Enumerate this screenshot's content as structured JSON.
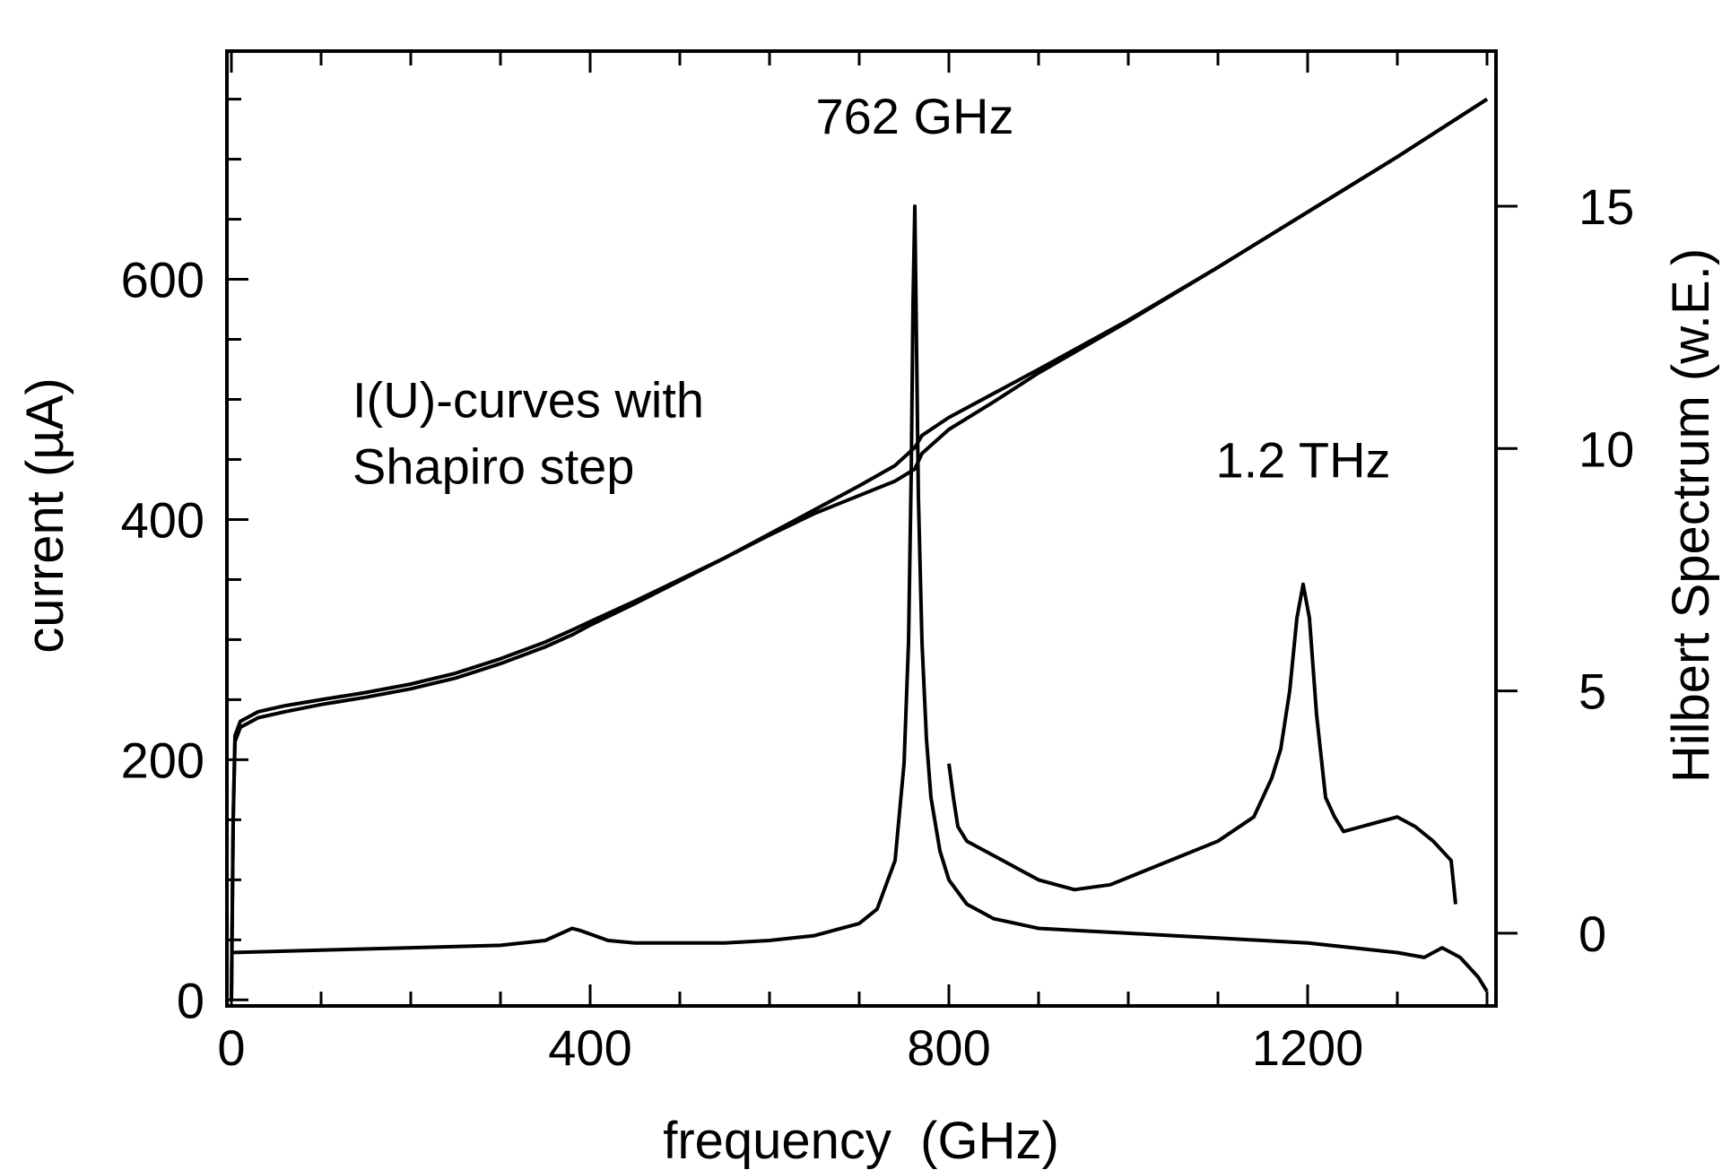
{
  "chart_data": {
    "type": "line",
    "title": "",
    "xlabel": "frequency  (GHz)",
    "ylabel_left": "current (µA)",
    "ylabel_right": "Hilbert Spectrum (w.E.)",
    "xlim": [
      -5,
      1410
    ],
    "ylim_left": [
      -5,
      790
    ],
    "ylim_right": [
      -1.5,
      18.2
    ],
    "x_ticks": [
      0,
      400,
      800,
      1200
    ],
    "y_ticks_left": [
      0,
      200,
      400,
      600
    ],
    "y_ticks_right": [
      0,
      5,
      10,
      15
    ],
    "grid": false,
    "annotations": [
      {
        "text": "762 GHz",
        "x": 762,
        "y_right": 16.5
      },
      {
        "text": "1.2 THz",
        "x": 1195,
        "y_right": 9.4
      },
      {
        "text": "I(U)-curves with",
        "x": 135,
        "y_left": 485
      },
      {
        "text": "Shapiro step",
        "x": 135,
        "y_left": 430
      }
    ],
    "series": [
      {
        "axis": "left",
        "x": [
          0,
          2,
          4,
          10,
          30,
          60,
          100,
          150,
          200,
          250,
          300,
          350,
          380,
          400,
          450,
          500,
          550,
          600,
          650,
          700,
          740,
          762,
          770,
          800,
          850,
          900,
          1000,
          1100,
          1200,
          1300,
          1400
        ],
        "y": [
          0,
          150,
          220,
          232,
          240,
          245,
          250,
          256,
          263,
          272,
          284,
          298,
          308,
          315,
          332,
          350,
          368,
          388,
          408,
          428,
          445,
          460,
          470,
          485,
          505,
          525,
          566,
          610,
          656,
          702,
          750
        ]
      },
      {
        "axis": "left",
        "x": [
          0,
          2,
          4,
          10,
          30,
          60,
          100,
          150,
          200,
          250,
          300,
          350,
          380,
          400,
          450,
          500,
          550,
          600,
          650,
          700,
          740,
          762,
          770,
          800,
          850,
          900,
          1000,
          1100,
          1200,
          1300,
          1400
        ],
        "y": [
          0,
          150,
          215,
          227,
          235,
          240,
          246,
          252,
          259,
          268,
          280,
          294,
          304,
          312,
          330,
          349,
          368,
          387,
          405,
          420,
          432,
          442,
          455,
          475,
          498,
          522,
          565,
          610,
          656,
          702,
          750
        ]
      },
      {
        "axis": "right",
        "x": [
          0,
          100,
          200,
          300,
          350,
          380,
          390,
          420,
          450,
          500,
          550,
          600,
          650,
          700,
          720,
          740,
          750,
          755,
          758,
          760,
          762,
          764,
          766,
          770,
          775,
          780,
          790,
          800,
          820,
          850,
          900,
          950,
          1000,
          1050,
          1100,
          1150,
          1200,
          1250,
          1300,
          1330,
          1350,
          1370,
          1390,
          1400
        ],
        "y": [
          -0.4,
          -0.35,
          -0.3,
          -0.25,
          -0.15,
          0.1,
          0.05,
          -0.15,
          -0.2,
          -0.2,
          -0.2,
          -0.15,
          -0.05,
          0.2,
          0.5,
          1.5,
          3.5,
          6,
          9.5,
          13,
          15,
          12,
          9,
          6,
          4,
          2.8,
          1.7,
          1.1,
          0.6,
          0.3,
          0.1,
          0.05,
          0.0,
          -0.05,
          -0.1,
          -0.15,
          -0.2,
          -0.3,
          -0.4,
          -0.5,
          -0.3,
          -0.5,
          -0.9,
          -1.2
        ]
      },
      {
        "axis": "right",
        "x": [
          800,
          805,
          810,
          820,
          840,
          860,
          880,
          900,
          940,
          980,
          1020,
          1060,
          1100,
          1140,
          1160,
          1170,
          1180,
          1188,
          1195,
          1202,
          1210,
          1220,
          1230,
          1240,
          1260,
          1280,
          1300,
          1320,
          1340,
          1360,
          1365
        ],
        "y": [
          3.5,
          2.8,
          2.2,
          1.9,
          1.7,
          1.5,
          1.3,
          1.1,
          0.9,
          1.0,
          1.3,
          1.6,
          1.9,
          2.4,
          3.2,
          3.8,
          5.0,
          6.5,
          7.2,
          6.5,
          4.5,
          2.8,
          2.4,
          2.1,
          2.2,
          2.3,
          2.4,
          2.2,
          1.9,
          1.5,
          0.6
        ]
      }
    ]
  }
}
